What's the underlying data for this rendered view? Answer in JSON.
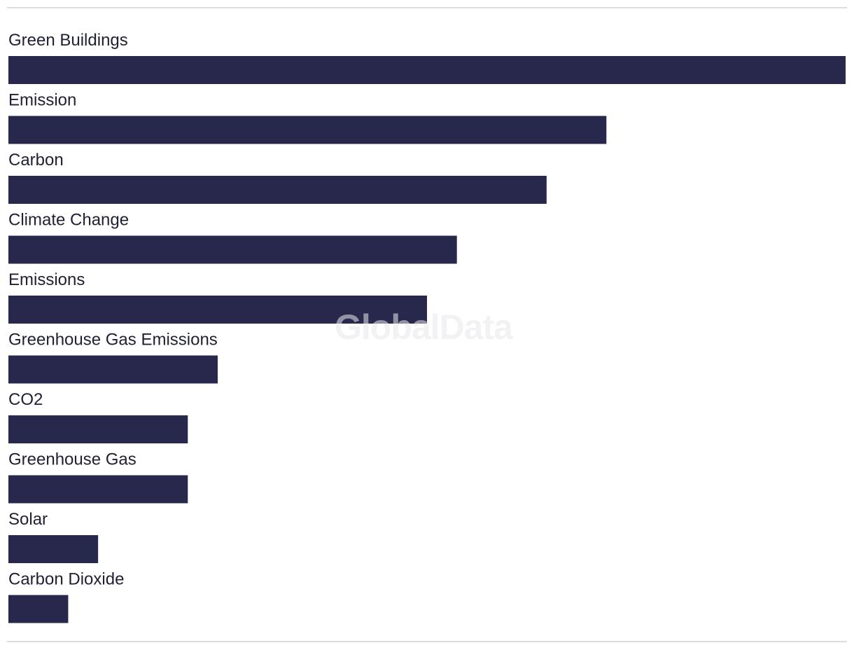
{
  "chart_data": {
    "type": "bar",
    "orientation": "horizontal",
    "categories": [
      "Green Buildings",
      "Emission",
      "Carbon",
      "Climate Change",
      "Emissions",
      "Greenhouse Gas Emissions",
      "CO2",
      "Greenhouse Gas",
      "Solar",
      "Carbon Dioxide"
    ],
    "values": [
      28,
      20,
      18,
      15,
      14,
      7,
      6,
      6,
      3,
      2
    ],
    "xlim": [
      0,
      28
    ],
    "grid": false,
    "legend": "none",
    "bar_color": "#28284d"
  },
  "watermark": "GlobalData"
}
